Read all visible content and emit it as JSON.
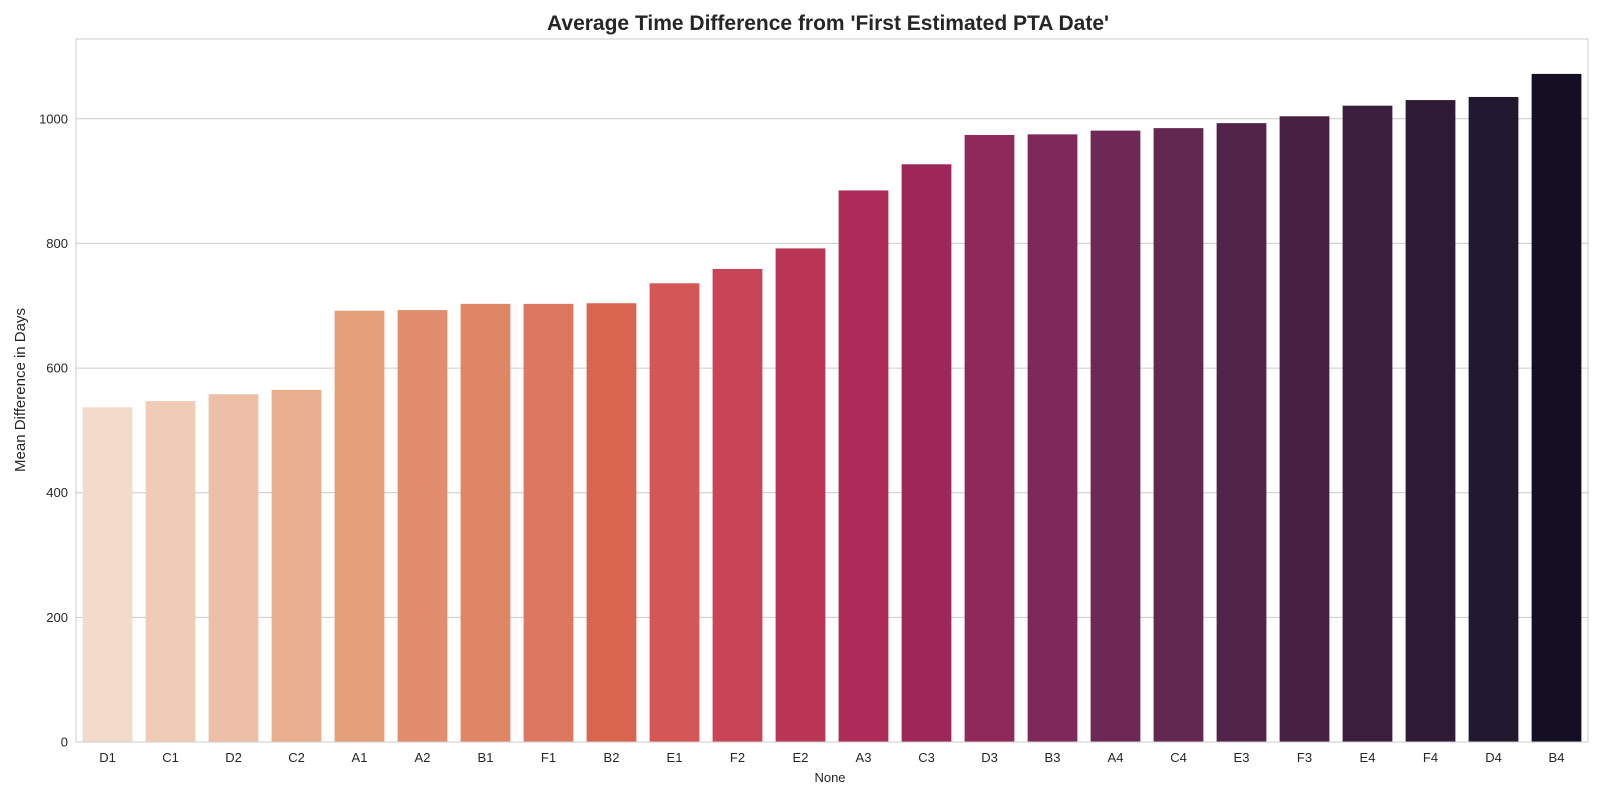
{
  "chart_data": {
    "type": "bar",
    "title": "Average Time Difference from 'First Estimated PTA Date'",
    "xlabel": "None",
    "ylabel": "Mean Difference in Days",
    "ylim": [
      0,
      1128
    ],
    "yticks": [
      0,
      200,
      400,
      600,
      800,
      1000
    ],
    "grid": "y",
    "categories": [
      "D1",
      "C1",
      "D2",
      "C2",
      "A1",
      "A2",
      "B1",
      "F1",
      "B2",
      "E1",
      "F2",
      "E2",
      "A3",
      "C3",
      "D3",
      "B3",
      "A4",
      "C4",
      "E3",
      "F3",
      "E4",
      "F4",
      "D4",
      "B4"
    ],
    "values": [
      537,
      547,
      558,
      565,
      692,
      693,
      703,
      703,
      704,
      736,
      759,
      792,
      885,
      927,
      974,
      975,
      981,
      985,
      993,
      1004,
      1021,
      1030,
      1035,
      1072
    ],
    "colors": [
      "#f3dbcc",
      "#f0cbb5",
      "#ecbfa6",
      "#e8ae8e",
      "#e5a07b",
      "#e28e6e",
      "#e08566",
      "#de7760",
      "#d9654f",
      "#d45656",
      "#c84456",
      "#bb3656",
      "#ac2b58",
      "#9e275a",
      "#8f295a",
      "#7e295a",
      "#6e2856",
      "#622851",
      "#532449",
      "#472144",
      "#3b1d3e",
      "#2f1b36",
      "#221830",
      "#140f22"
    ]
  }
}
